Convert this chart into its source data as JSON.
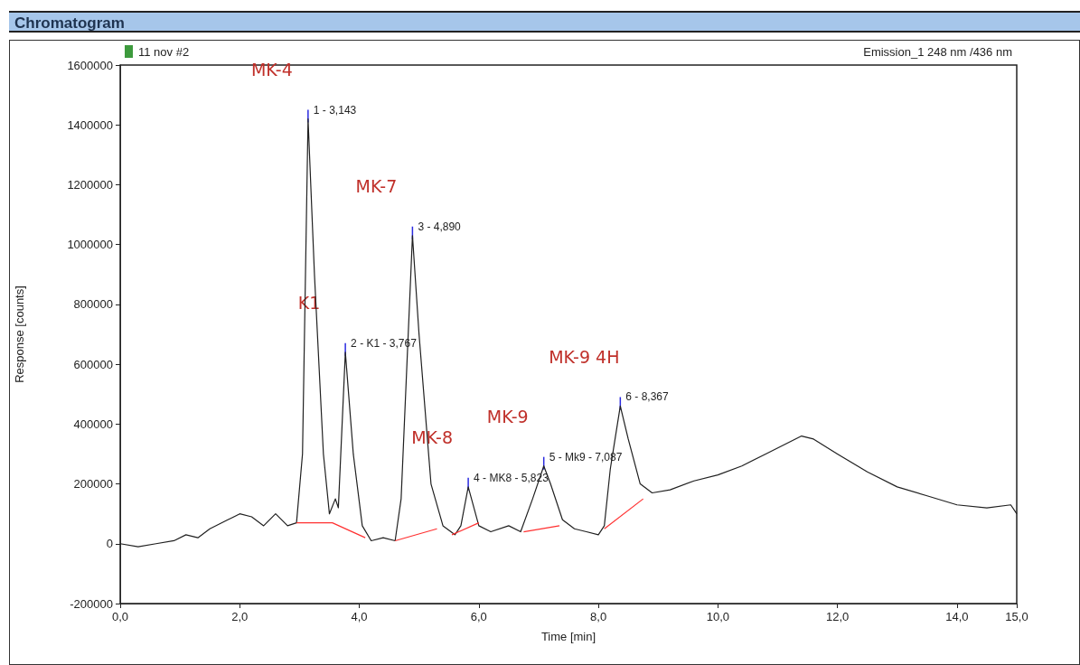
{
  "chart_data": {
    "type": "line",
    "title": "Chromatogram",
    "subtitle": "11 nov #2",
    "xlabel": "Time [min]",
    "ylabel": "Response [counts]",
    "xlim": [
      0,
      15
    ],
    "ylim": [
      -200000,
      1600000
    ],
    "xticks": [
      {
        "value": 0,
        "label": "0,0"
      },
      {
        "value": 2,
        "label": "2,0"
      },
      {
        "value": 4,
        "label": "4,0"
      },
      {
        "value": 6,
        "label": "6,0"
      },
      {
        "value": 8,
        "label": "8,0"
      },
      {
        "value": 10,
        "label": "10,0"
      },
      {
        "value": 12,
        "label": "12,0"
      },
      {
        "value": 14,
        "label": "14,0"
      },
      {
        "value": 15,
        "label": "15,0"
      }
    ],
    "yticks": [
      -200000,
      0,
      200000,
      400000,
      600000,
      800000,
      1000000,
      1200000,
      1400000,
      1600000
    ],
    "grid": false,
    "marker": "none",
    "line_style": "solid",
    "series": [
      {
        "color": "#202020",
        "x": [
          0,
          0.3,
          0.6,
          0.9,
          1.1,
          1.3,
          1.5,
          1.8,
          2.0,
          2.2,
          2.4,
          2.6,
          2.8,
          2.95,
          3.05,
          3.143,
          3.25,
          3.4,
          3.5,
          3.6,
          3.65,
          3.767,
          3.9,
          4.05,
          4.2,
          4.4,
          4.6,
          4.7,
          4.89,
          5.0,
          5.2,
          5.4,
          5.6,
          5.7,
          5.823,
          6.0,
          6.2,
          6.5,
          6.7,
          6.9,
          7.087,
          7.2,
          7.4,
          7.6,
          7.8,
          8.0,
          8.1,
          8.2,
          8.367,
          8.5,
          8.7,
          8.9,
          9.2,
          9.6,
          10.0,
          10.4,
          10.8,
          11.1,
          11.4,
          11.6,
          12.0,
          12.5,
          13.0,
          13.5,
          14.0,
          14.5,
          14.9,
          15.0
        ],
        "values": [
          0,
          -10000,
          0,
          10000,
          30000,
          20000,
          50000,
          80000,
          100000,
          90000,
          60000,
          100000,
          60000,
          70000,
          300000,
          1420000,
          900000,
          300000,
          100000,
          150000,
          120000,
          640000,
          300000,
          60000,
          10000,
          20000,
          10000,
          150000,
          1030000,
          700000,
          200000,
          60000,
          30000,
          60000,
          190000,
          60000,
          40000,
          60000,
          40000,
          150000,
          260000,
          200000,
          80000,
          50000,
          40000,
          30000,
          60000,
          250000,
          460000,
          350000,
          200000,
          170000,
          180000,
          210000,
          230000,
          260000,
          300000,
          330000,
          360000,
          350000,
          300000,
          240000,
          190000,
          160000,
          130000,
          120000,
          130000,
          100000
        ]
      },
      {
        "color": "#ff3030",
        "x": [
          2.95,
          3.55,
          4.1
        ],
        "values": [
          70000,
          70000,
          20000
        ]
      },
      {
        "color": "#ff3030",
        "x": [
          4.6,
          5.3
        ],
        "values": [
          10000,
          50000
        ]
      },
      {
        "color": "#ff3030",
        "x": [
          5.55,
          6.0
        ],
        "values": [
          30000,
          70000
        ]
      },
      {
        "color": "#ff3030",
        "x": [
          6.75,
          7.35
        ],
        "values": [
          40000,
          60000
        ]
      },
      {
        "color": "#ff3030",
        "x": [
          8.1,
          8.75
        ],
        "values": [
          50000,
          150000
        ]
      }
    ],
    "annotations": [
      "Emission_1 248 nm /436 nm",
      {
        "text": "1 - 3,143",
        "x": 3.143,
        "y": 1420000
      },
      {
        "text": "MK-4",
        "x": 3.143,
        "y": 1420000
      },
      {
        "text": "2 - K1 - 3,767",
        "x": 3.767,
        "y": 640000
      },
      {
        "text": "K1",
        "x": 3.767,
        "y": 640000
      },
      {
        "text": "3 - 4,890",
        "x": 4.89,
        "y": 1030000
      },
      {
        "text": "MK-7",
        "x": 4.89,
        "y": 1030000
      },
      {
        "text": "4 - MK8 - 5,823",
        "x": 5.823,
        "y": 190000
      },
      {
        "text": "MK-8",
        "x": 5.823,
        "y": 190000
      },
      {
        "text": "5 - Mk9 - 7,087",
        "x": 7.087,
        "y": 260000
      },
      {
        "text": "MK-9",
        "x": 7.087,
        "y": 260000
      },
      {
        "text": "6 - 8,367",
        "x": 8.367,
        "y": 460000
      },
      {
        "text": "MK-9 4H",
        "x": 8.367,
        "y": 460000
      }
    ]
  }
}
